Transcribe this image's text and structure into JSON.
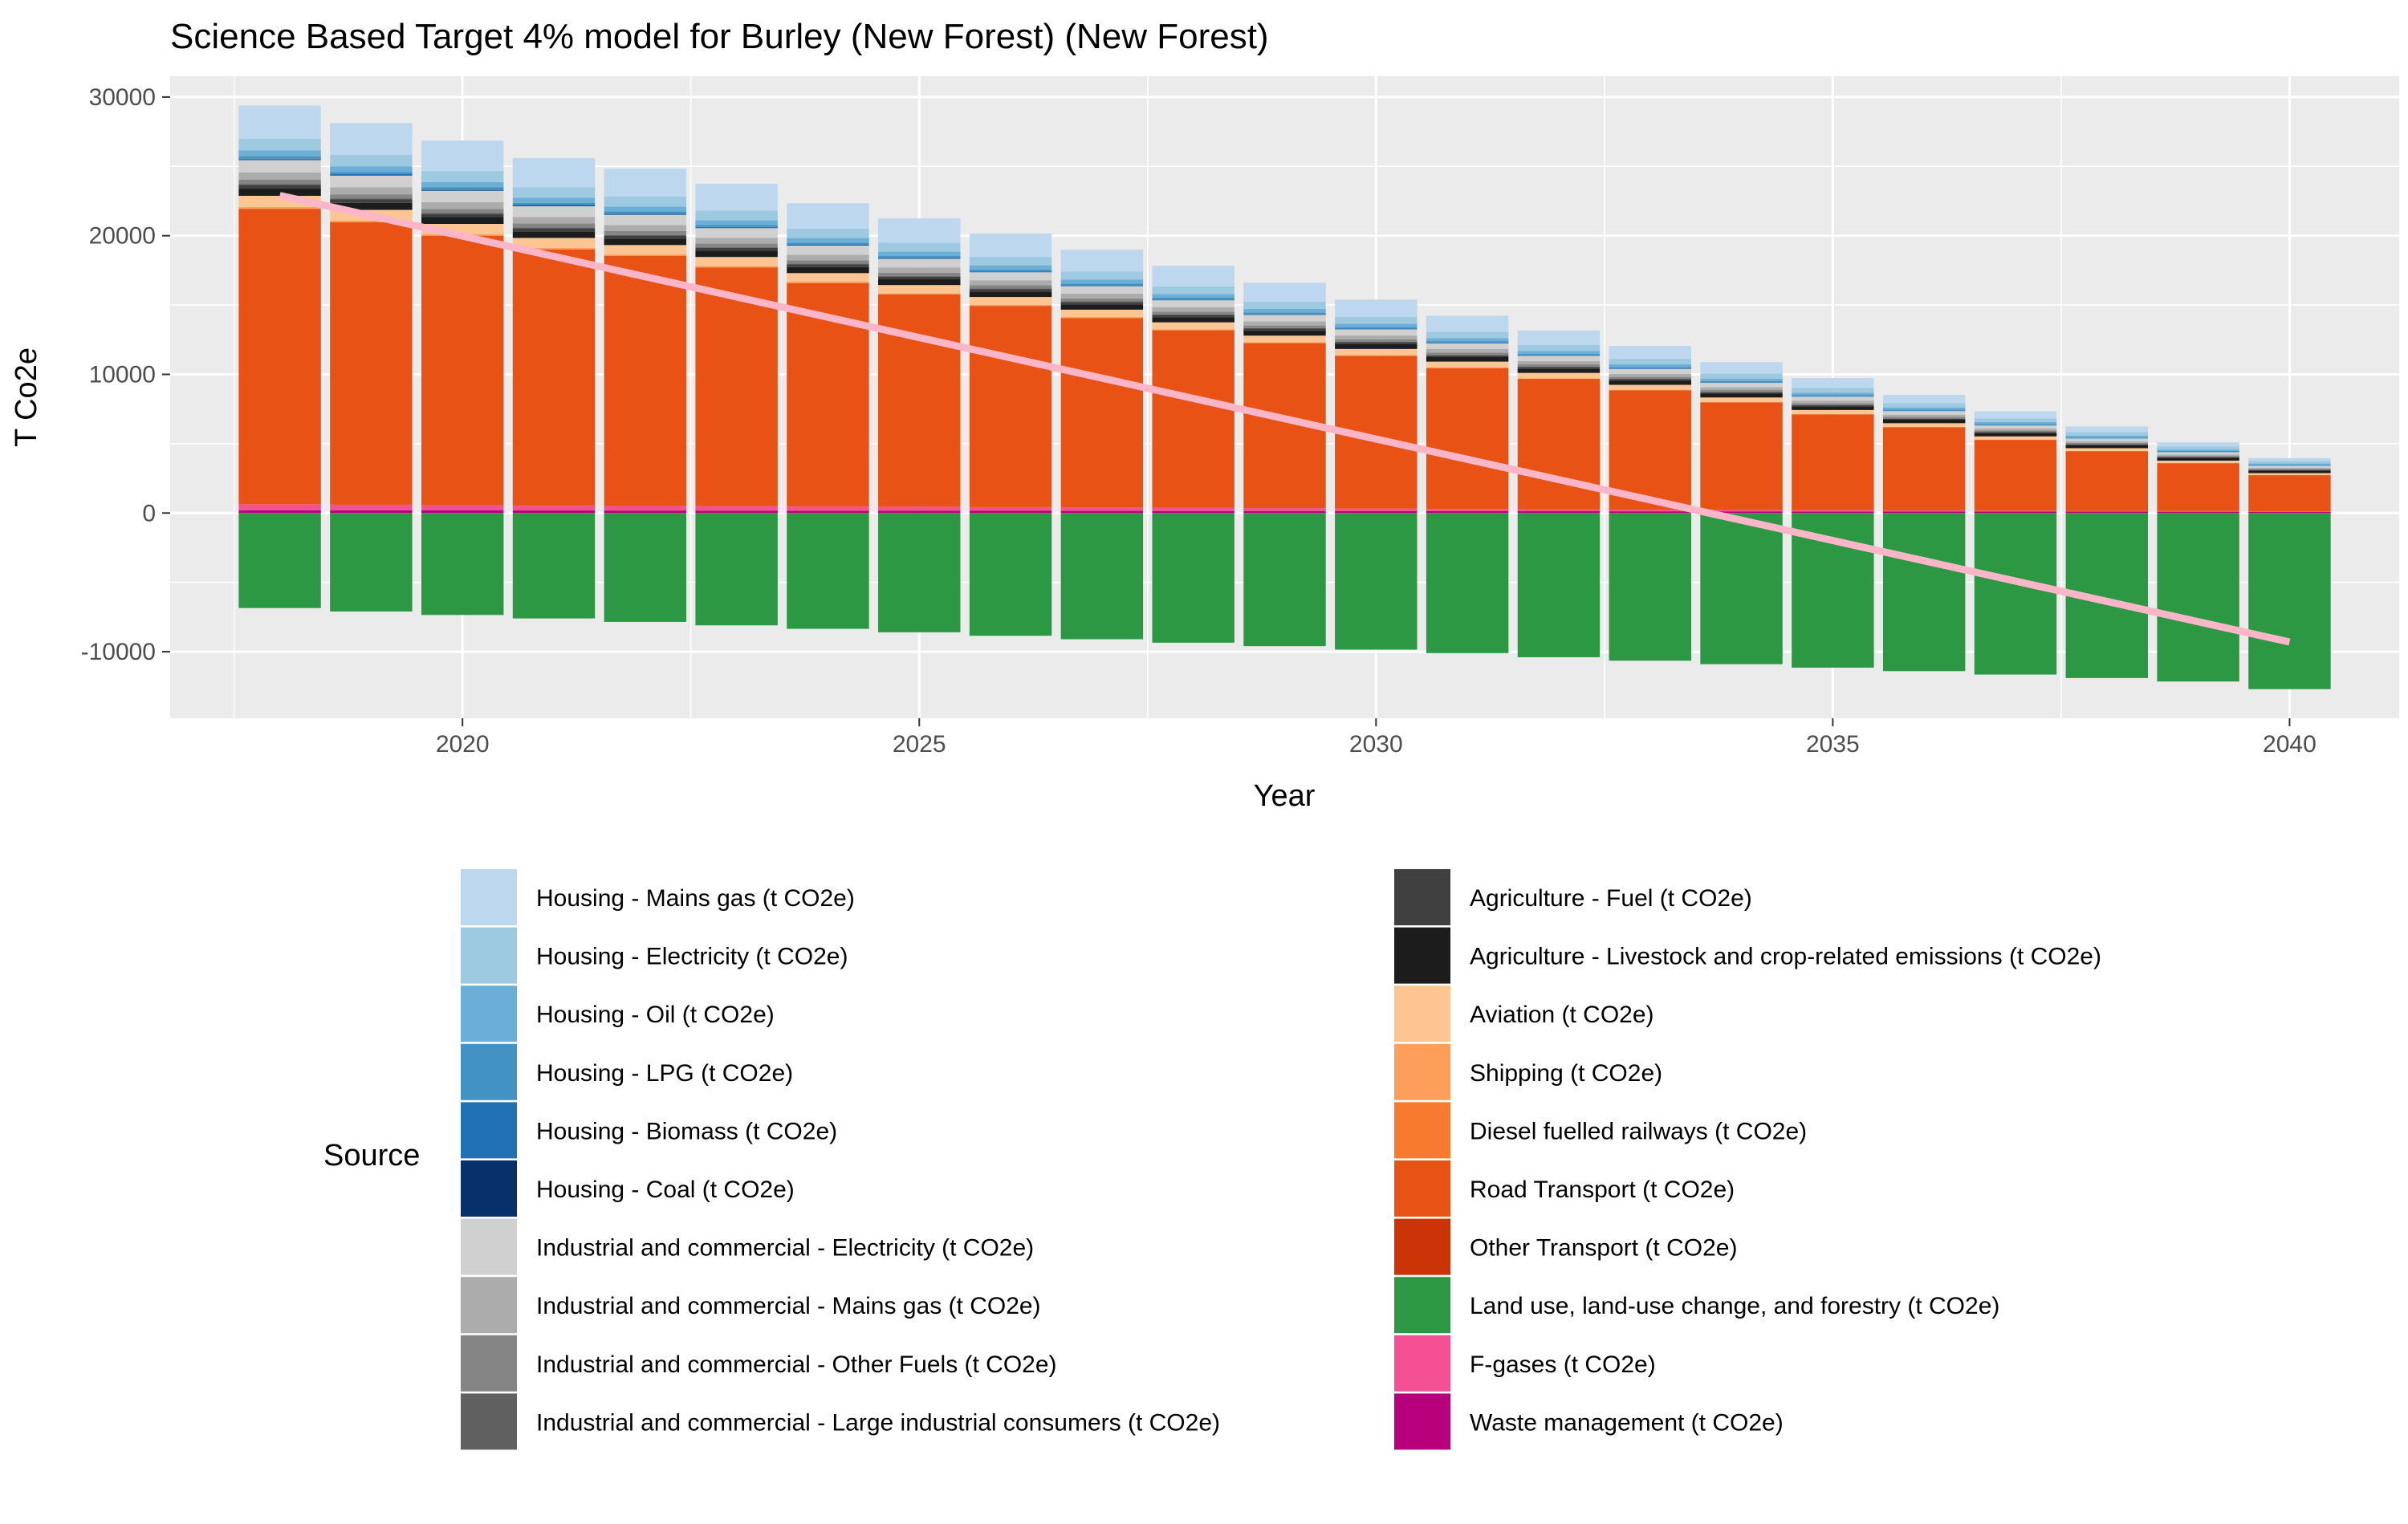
{
  "chart_data": {
    "type": "bar",
    "stacked": true,
    "title": "Science Based Target 4% model for Burley (New Forest) (New Forest)",
    "xlabel": "Year",
    "ylabel": "T Co2e",
    "xlim": [
      2016.8,
      2041.2
    ],
    "ylim": [
      -14800,
      31500
    ],
    "x_ticks": [
      2020,
      2025,
      2030,
      2035,
      2040
    ],
    "y_ticks": [
      -10000,
      0,
      10000,
      20000,
      30000
    ],
    "y_tick_labels": [
      "-10000",
      "0",
      "10000",
      "20000",
      "30000"
    ],
    "grid": true,
    "legend_title": "Source",
    "legend_position": "bottom",
    "categories": [
      2018,
      2019,
      2020,
      2021,
      2022,
      2023,
      2024,
      2025,
      2026,
      2027,
      2028,
      2029,
      2030,
      2031,
      2032,
      2033,
      2034,
      2035,
      2036,
      2037,
      2038,
      2039,
      2040
    ],
    "series": [
      {
        "name": "Housing - Mains gas (t CO2e)",
        "color": "#BDD7EE",
        "values": [
          2400,
          2300,
          2200,
          2100,
          2000,
          1920,
          1840,
          1760,
          1680,
          1580,
          1480,
          1370,
          1260,
          1150,
          1040,
          930,
          820,
          710,
          600,
          500,
          400,
          300,
          200
        ]
      },
      {
        "name": "Housing - Electricity (t CO2e)",
        "color": "#9ECAE1",
        "values": [
          850,
          820,
          790,
          760,
          730,
          700,
          670,
          640,
          610,
          580,
          550,
          520,
          490,
          460,
          430,
          400,
          370,
          340,
          310,
          280,
          250,
          220,
          190
        ]
      },
      {
        "name": "Housing - Oil (t CO2e)",
        "color": "#6BAED6",
        "values": [
          420,
          405,
          390,
          375,
          360,
          345,
          330,
          315,
          300,
          285,
          270,
          255,
          240,
          225,
          210,
          195,
          180,
          165,
          150,
          135,
          120,
          105,
          90
        ]
      },
      {
        "name": "Housing - LPG (t CO2e)",
        "color": "#4292C6",
        "values": [
          170,
          165,
          160,
          155,
          150,
          145,
          140,
          135,
          130,
          125,
          120,
          115,
          110,
          105,
          100,
          95,
          90,
          85,
          80,
          75,
          70,
          65,
          60
        ]
      },
      {
        "name": "Housing - Biomass (t CO2e)",
        "color": "#2171B5",
        "values": [
          60,
          58,
          56,
          54,
          52,
          50,
          48,
          46,
          44,
          42,
          40,
          38,
          36,
          34,
          32,
          30,
          28,
          26,
          24,
          22,
          20,
          18,
          16
        ]
      },
      {
        "name": "Housing - Coal (t CO2e)",
        "color": "#08306B",
        "values": [
          40,
          38,
          36,
          34,
          32,
          30,
          28,
          26,
          24,
          22,
          20,
          18,
          16,
          14,
          12,
          10,
          9,
          8,
          7,
          6,
          5,
          4,
          3
        ]
      },
      {
        "name": "Industrial and commercial - Electricity (t CO2e)",
        "color": "#D0D0D0",
        "values": [
          900,
          860,
          820,
          780,
          740,
          700,
          660,
          620,
          580,
          540,
          500,
          470,
          440,
          410,
          380,
          350,
          320,
          290,
          260,
          230,
          200,
          170,
          140
        ]
      },
      {
        "name": "Industrial and commercial - Mains gas (t CO2e)",
        "color": "#ACACAC",
        "values": [
          520,
          500,
          480,
          460,
          440,
          420,
          400,
          380,
          360,
          340,
          320,
          300,
          280,
          260,
          240,
          220,
          200,
          180,
          160,
          140,
          120,
          100,
          80
        ]
      },
      {
        "name": "Industrial and commercial - Other Fuels (t CO2e)",
        "color": "#858585",
        "values": [
          320,
          308,
          296,
          284,
          272,
          260,
          248,
          236,
          224,
          212,
          200,
          188,
          176,
          164,
          152,
          140,
          128,
          116,
          104,
          92,
          80,
          68,
          56
        ]
      },
      {
        "name": "Industrial and commercial - Large industrial consumers (t CO2e)",
        "color": "#606060",
        "values": [
          60,
          58,
          56,
          54,
          52,
          50,
          48,
          46,
          44,
          42,
          40,
          38,
          36,
          34,
          32,
          30,
          28,
          26,
          24,
          22,
          20,
          18,
          16
        ]
      },
      {
        "name": "Agriculture - Fuel (t CO2e)",
        "color": "#404040",
        "values": [
          260,
          250,
          240,
          230,
          220,
          210,
          200,
          190,
          180,
          170,
          160,
          150,
          140,
          130,
          120,
          110,
          100,
          90,
          80,
          70,
          60,
          50,
          40
        ]
      },
      {
        "name": "Agriculture - Livestock and crop-related emissions (t CO2e)",
        "color": "#1C1C1C",
        "values": [
          520,
          505,
          490,
          475,
          460,
          445,
          430,
          415,
          400,
          385,
          370,
          355,
          340,
          325,
          310,
          295,
          280,
          265,
          250,
          235,
          220,
          205,
          190
        ]
      },
      {
        "name": "Aviation (t CO2e)",
        "color": "#FDC591",
        "values": [
          800,
          770,
          740,
          710,
          680,
          650,
          620,
          590,
          560,
          530,
          500,
          470,
          440,
          410,
          380,
          350,
          320,
          290,
          260,
          230,
          200,
          170,
          140
        ]
      },
      {
        "name": "Shipping (t CO2e)",
        "color": "#FD9F5A",
        "values": [
          110,
          105,
          100,
          95,
          90,
          85,
          80,
          75,
          70,
          65,
          60,
          55,
          50,
          45,
          40,
          35,
          30,
          25,
          20,
          15,
          12,
          9,
          6
        ]
      },
      {
        "name": "Diesel fuelled railways (t CO2e)",
        "color": "#F87A30",
        "values": [
          25,
          24,
          23,
          22,
          21,
          20,
          19,
          18,
          17,
          16,
          15,
          14,
          13,
          12,
          11,
          10,
          9,
          8,
          7,
          6,
          5,
          4,
          3
        ]
      },
      {
        "name": "Road Transport (t CO2e)",
        "color": "#E85214",
        "values": [
          21300,
          20350,
          19400,
          18450,
          18000,
          17200,
          16100,
          15300,
          14500,
          13650,
          12800,
          11900,
          11000,
          10150,
          9400,
          8600,
          7750,
          6900,
          6000,
          5100,
          4300,
          3450,
          2600
        ]
      },
      {
        "name": "Other Transport (t CO2e)",
        "color": "#CC3408",
        "values": [
          20,
          19,
          18,
          17,
          16,
          15,
          14,
          13,
          12,
          11,
          10,
          9,
          8,
          7,
          6,
          5,
          4,
          3,
          2,
          2,
          1,
          1,
          1
        ]
      },
      {
        "name": "Land use, land-use change, and forestry (t CO2e)",
        "color": "#2C9844",
        "values": [
          -6850,
          -7100,
          -7350,
          -7600,
          -7850,
          -8100,
          -8350,
          -8600,
          -8850,
          -9100,
          -9350,
          -9600,
          -9850,
          -10100,
          -10400,
          -10650,
          -10900,
          -11150,
          -11400,
          -11650,
          -11900,
          -12150,
          -12700
        ]
      },
      {
        "name": "F-gases (t CO2e)",
        "color": "#F45094",
        "values": [
          420,
          400,
          380,
          360,
          340,
          320,
          300,
          280,
          260,
          240,
          220,
          200,
          180,
          160,
          140,
          120,
          100,
          90,
          80,
          70,
          60,
          50,
          40
        ]
      },
      {
        "name": "Waste management (t CO2e)",
        "color": "#B8007C",
        "values": [
          200,
          195,
          190,
          185,
          180,
          175,
          170,
          165,
          160,
          155,
          150,
          145,
          140,
          135,
          130,
          125,
          120,
          115,
          110,
          105,
          100,
          95,
          90
        ]
      }
    ],
    "target_line": {
      "color": "#FDB6C7",
      "x": [
        2018,
        2040
      ],
      "y": [
        22900,
        -9300
      ]
    }
  }
}
